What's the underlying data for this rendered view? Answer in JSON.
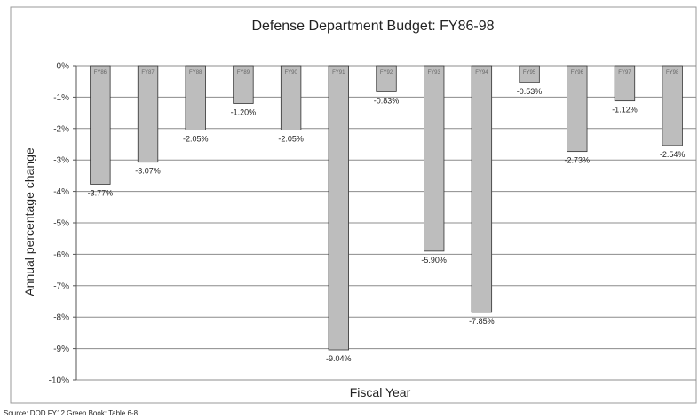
{
  "chart_data": {
    "type": "bar",
    "title": "Defense Department Budget: FY86-98",
    "xlabel": "Fiscal Year",
    "ylabel": "Annual percentage change",
    "categories": [
      "FY86",
      "FY87",
      "FY88",
      "FY89",
      "FY90",
      "FY91",
      "FY92",
      "FY93",
      "FY94",
      "FY95",
      "FY96",
      "FY97",
      "FY98"
    ],
    "values": [
      -3.77,
      -3.07,
      -2.05,
      -1.2,
      -2.05,
      -9.04,
      -0.83,
      -5.9,
      -7.85,
      -0.53,
      -2.73,
      -1.12,
      -2.54
    ],
    "data_labels": [
      "-3.77%",
      "-3.07%",
      "-2.05%",
      "-1.20%",
      "-2.05%",
      "-9.04%",
      "-0.83%",
      "-5.90%",
      "-7.85%",
      "-0.53%",
      "-2.73%",
      "-1.12%",
      "-2.54%"
    ],
    "ylim": [
      -10,
      0
    ],
    "yticks": [
      0,
      -1,
      -2,
      -3,
      -4,
      -5,
      -6,
      -7,
      -8,
      -9,
      -10
    ],
    "ytick_labels": [
      "0%",
      "-1%",
      "-2%",
      "-3%",
      "-4%",
      "-5%",
      "-6%",
      "-7%",
      "-8%",
      "-9%",
      "-10%"
    ],
    "grid": true,
    "bar_color": "#bdbdbd",
    "bar_edge_color": "#333333",
    "source": "Source: DOD FY12 Green Book: Table 6-8"
  }
}
